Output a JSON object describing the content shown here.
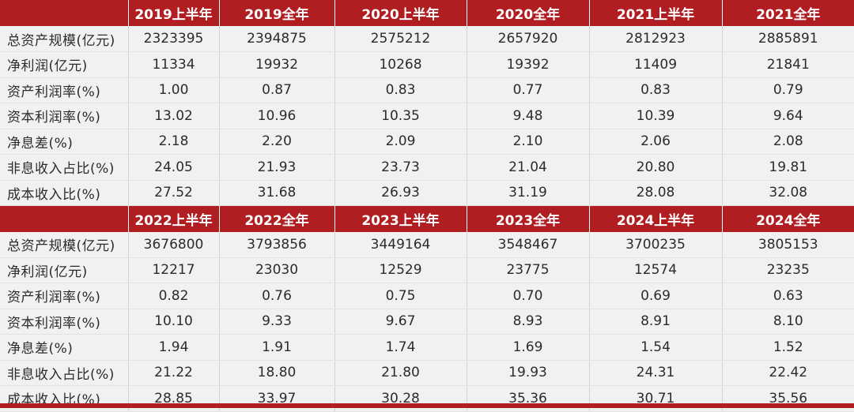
{
  "sections": [
    {
      "headers": [
        "2019上半年",
        "2019全年",
        "2020上半年",
        "2020全年",
        "2021上半年",
        "2021全年"
      ],
      "rows": [
        {
          "label": "总资产规模(亿元)",
          "values": [
            "2323395",
            "2394875",
            "2575212",
            "2657920",
            "2812923",
            "2885891"
          ]
        },
        {
          "label": "净利润(亿元)",
          "values": [
            "11334",
            "19932",
            "10268",
            "19392",
            "11409",
            "21841"
          ]
        },
        {
          "label": "资产利润率(%)",
          "values": [
            "1.00",
            "0.87",
            "0.83",
            "0.77",
            "0.83",
            "0.79"
          ]
        },
        {
          "label": "资本利润率(%)",
          "values": [
            "13.02",
            "10.96",
            "10.35",
            "9.48",
            "10.39",
            "9.64"
          ]
        },
        {
          "label": "净息差(%)",
          "values": [
            "2.18",
            "2.20",
            "2.09",
            "2.10",
            "2.06",
            "2.08"
          ]
        },
        {
          "label": "非息收入占比(%)",
          "values": [
            "24.05",
            "21.93",
            "23.73",
            "21.04",
            "20.80",
            "19.81"
          ]
        },
        {
          "label": "成本收入比(%)",
          "values": [
            "27.52",
            "31.68",
            "26.93",
            "31.19",
            "28.08",
            "32.08"
          ]
        }
      ]
    },
    {
      "headers": [
        "2022上半年",
        "2022全年",
        "2023上半年",
        "2023全年",
        "2024上半年",
        "2024全年"
      ],
      "rows": [
        {
          "label": "总资产规模(亿元)",
          "values": [
            "3676800",
            "3793856",
            "3449164",
            "3548467",
            "3700235",
            "3805153"
          ]
        },
        {
          "label": "净利润(亿元)",
          "values": [
            "12217",
            "23030",
            "12529",
            "23775",
            "12574",
            "23235"
          ]
        },
        {
          "label": "资产利润率(%)",
          "values": [
            "0.82",
            "0.76",
            "0.75",
            "0.70",
            "0.69",
            "0.63"
          ]
        },
        {
          "label": "资本利润率(%)",
          "values": [
            "10.10",
            "9.33",
            "9.67",
            "8.93",
            "8.91",
            "8.10"
          ]
        },
        {
          "label": "净息差(%)",
          "values": [
            "1.94",
            "1.91",
            "1.74",
            "1.69",
            "1.54",
            "1.52"
          ]
        },
        {
          "label": "非息收入占比(%)",
          "values": [
            "21.22",
            "18.80",
            "21.80",
            "19.93",
            "24.31",
            "22.42"
          ]
        },
        {
          "label": "成本收入比(%)",
          "values": [
            "28.85",
            "33.97",
            "30.28",
            "35.36",
            "30.71",
            "35.56"
          ]
        }
      ]
    }
  ]
}
